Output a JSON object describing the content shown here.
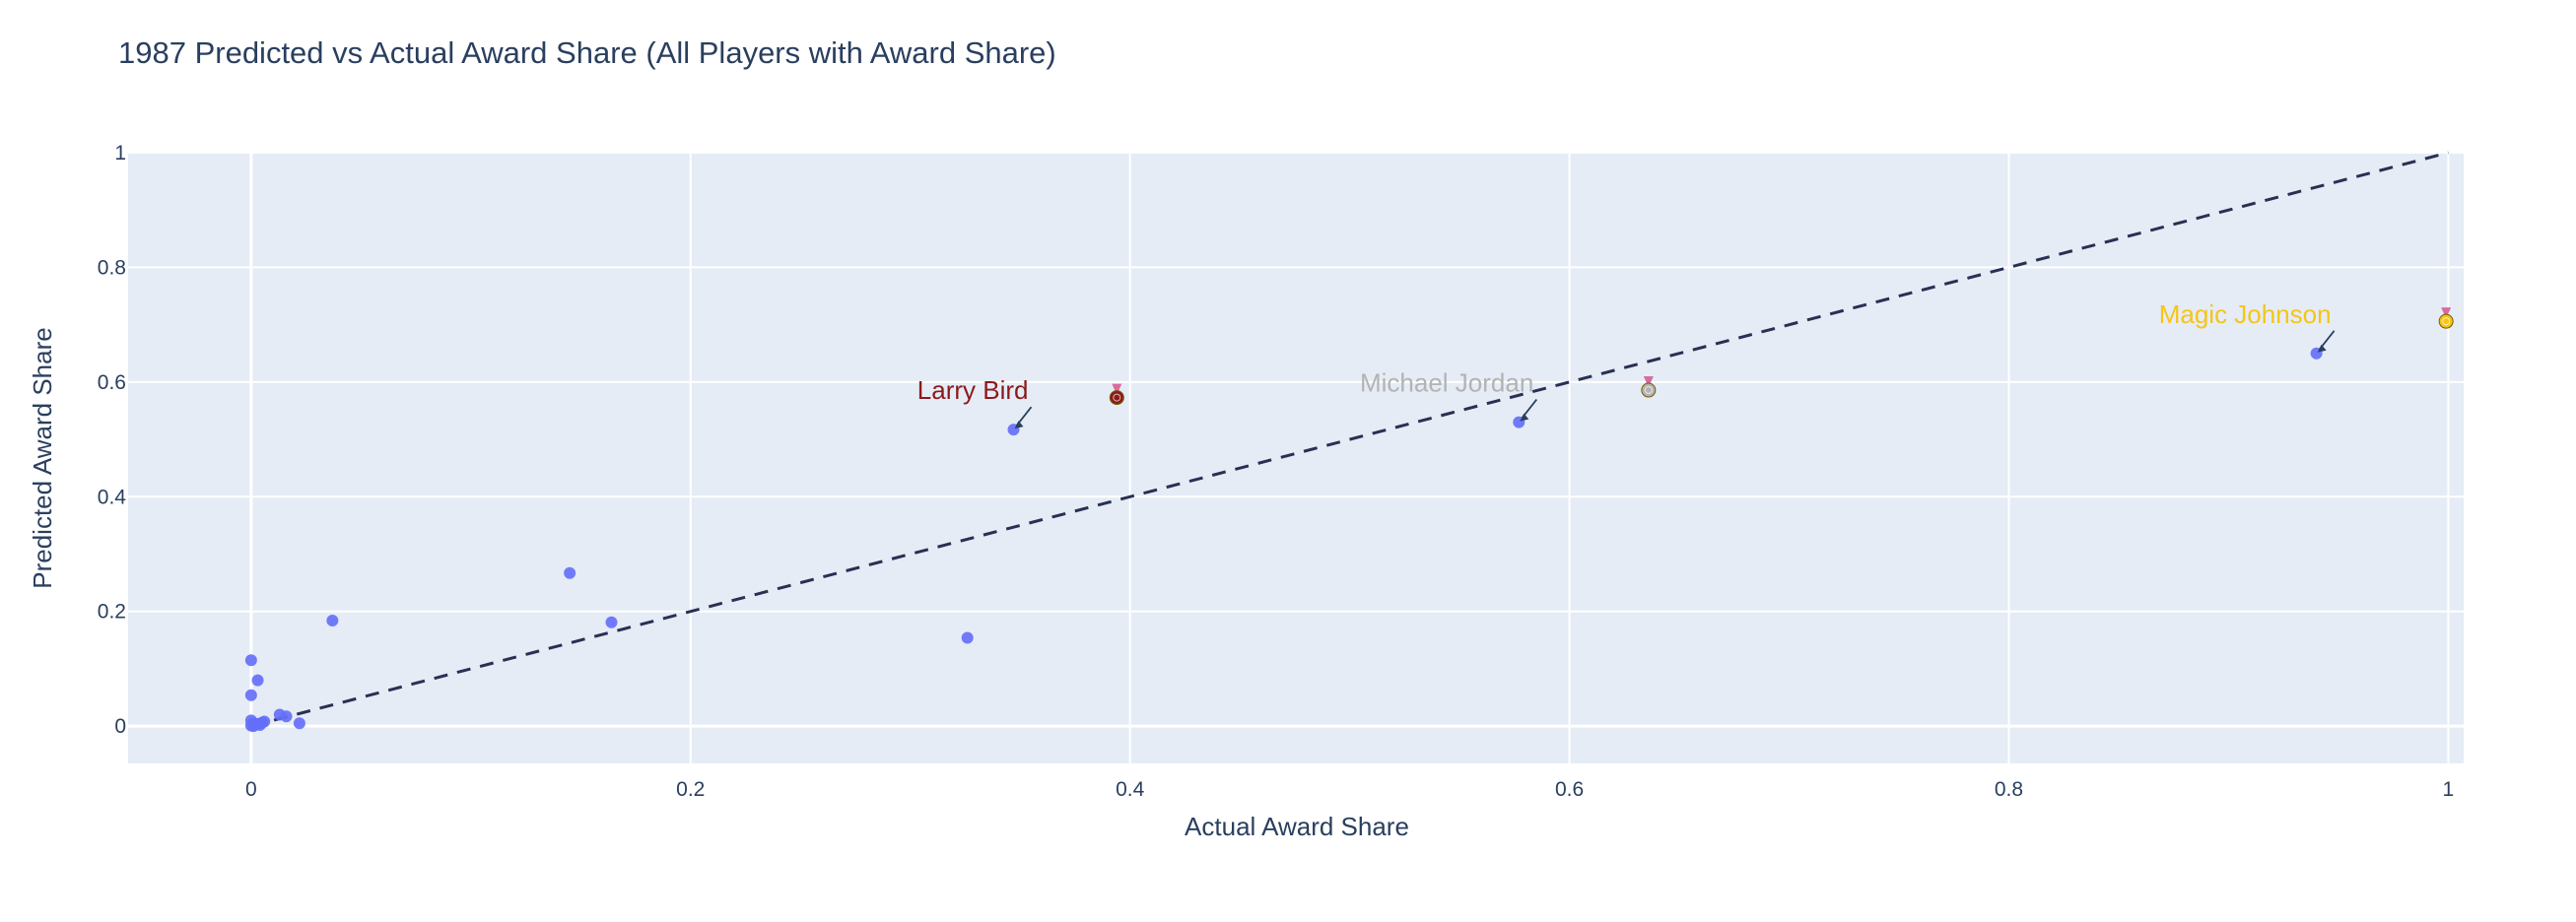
{
  "chart_data": {
    "type": "scatter",
    "title": "1987 Predicted vs Actual Award Share (All Players with Award Share)",
    "xlabel": "Actual Award Share",
    "ylabel": "Predicted Award Share",
    "xlim": [
      -0.056,
      1.007
    ],
    "ylim": [
      -0.065,
      1.0
    ],
    "x_ticks": [
      0,
      0.2,
      0.4,
      0.6,
      0.8,
      1
    ],
    "x_tick_labels": [
      "0",
      "0.2",
      "0.4",
      "0.6",
      "0.8",
      "1"
    ],
    "y_ticks": [
      0,
      0.2,
      0.4,
      0.6,
      0.8,
      1
    ],
    "y_tick_labels": [
      "0",
      "0.2",
      "0.4",
      "0.6",
      "0.8",
      "1"
    ],
    "grid": true,
    "reference_line": {
      "x": [
        0,
        1
      ],
      "y": [
        0,
        1
      ],
      "style": "dashed",
      "color": "#2a3052"
    },
    "marker_color": "#636efa",
    "plot_bg": "#e5ecf6",
    "series": [
      {
        "x": [
          0.94,
          0.577,
          0.347,
          0.145,
          0.164,
          0.326,
          0.037,
          0.0,
          0.003,
          0.0,
          0.0,
          0.001,
          0.002,
          0.004,
          0.006,
          0.013,
          0.016,
          0.022,
          0.005,
          0.0,
          0.001,
          0.003
        ],
        "y": [
          0.65,
          0.53,
          0.517,
          0.267,
          0.181,
          0.154,
          0.184,
          0.115,
          0.08,
          0.054,
          0.01,
          0.005,
          0.003,
          0.002,
          0.008,
          0.02,
          0.017,
          0.005,
          0.006,
          0.001,
          0.0,
          0.004
        ]
      }
    ],
    "annotations": [
      {
        "text": "Magic Johnson",
        "medal": "gold-medal-icon",
        "color": "#f5c518",
        "point_x": 0.94,
        "point_y": 0.65,
        "medal_x": 0.999,
        "medal_y": 0.706
      },
      {
        "text": "Michael Jordan",
        "medal": "silver-medal-icon",
        "color": "#b3b3b3",
        "point_x": 0.577,
        "point_y": 0.53,
        "medal_x": 0.636,
        "medal_y": 0.586
      },
      {
        "text": "Larry Bird",
        "medal": "bronze-medal-icon",
        "color": "#8b1a1a",
        "point_x": 0.347,
        "point_y": 0.517,
        "medal_x": 0.394,
        "medal_y": 0.573
      }
    ]
  }
}
